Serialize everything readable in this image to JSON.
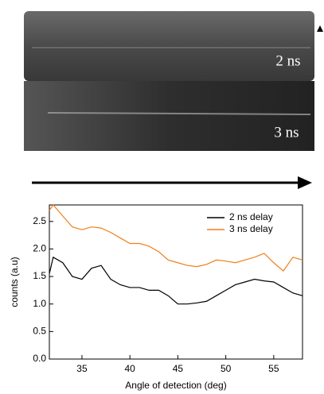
{
  "images": {
    "labels": [
      "2 ns",
      "3 ns"
    ]
  },
  "chart_data": {
    "type": "line",
    "xlabel": "Angle of detection (deg)",
    "ylabel": "counts (a.u)",
    "x": [
      31.6,
      32,
      33,
      34,
      35,
      36,
      37,
      38,
      39,
      40,
      41,
      42,
      43,
      44,
      45,
      46,
      47,
      48,
      49,
      50,
      51,
      52,
      53,
      54,
      55,
      56,
      57,
      58
    ],
    "series": [
      {
        "name": "2 ns delay",
        "color": "#000000",
        "values": [
          1.55,
          1.85,
          1.75,
          1.5,
          1.45,
          1.65,
          1.7,
          1.45,
          1.35,
          1.3,
          1.3,
          1.25,
          1.25,
          1.15,
          1.0,
          1.0,
          1.02,
          1.05,
          1.15,
          1.25,
          1.35,
          1.4,
          1.45,
          1.42,
          1.4,
          1.3,
          1.2,
          1.15
        ]
      },
      {
        "name": "3 ns delay",
        "color": "#f07f1a",
        "values": [
          2.7,
          2.8,
          2.6,
          2.4,
          2.35,
          2.4,
          2.38,
          2.3,
          2.2,
          2.1,
          2.1,
          2.05,
          1.95,
          1.8,
          1.75,
          1.7,
          1.68,
          1.72,
          1.8,
          1.78,
          1.75,
          1.8,
          1.85,
          1.92,
          1.75,
          1.6,
          1.85,
          1.8
        ]
      }
    ],
    "xlim": [
      31.6,
      58
    ],
    "ylim": [
      0,
      2.8
    ],
    "xticks": [
      35,
      40,
      45,
      50,
      55
    ],
    "yticks": [
      {
        "value": 0,
        "label": "0.0"
      },
      0.5,
      {
        "value": 1,
        "label": "1.0"
      },
      1.5,
      {
        "value": 2,
        "label": "2.0"
      },
      2.5
    ],
    "legend": "upper right"
  }
}
